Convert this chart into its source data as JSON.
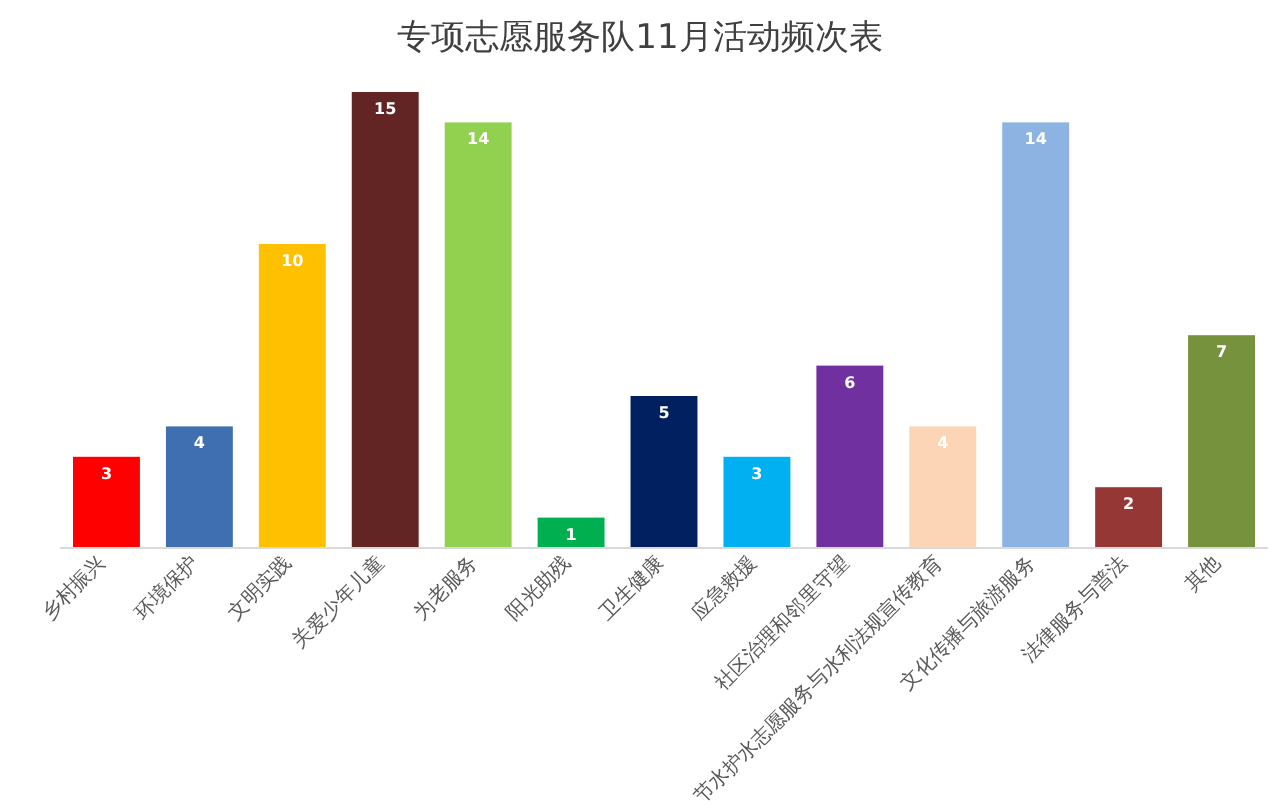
{
  "chart_data": {
    "type": "bar",
    "title": "专项志愿服务队11月活动频次表",
    "categories": [
      "乡村振兴",
      "环境保护",
      "文明实践",
      "关爱少年儿童",
      "为老服务",
      "阳光助残",
      "卫生健康",
      "应急救援",
      "社区治理和邻里守望",
      "节水护水志愿服务与水利法规宣传教育",
      "文化传播与旅游服务",
      "法律服务与普法",
      "其他"
    ],
    "values": [
      3,
      4,
      10,
      15,
      14,
      1,
      5,
      3,
      6,
      4,
      14,
      2,
      7
    ],
    "colors": [
      "#ff0000",
      "#3f6fb0",
      "#ffc000",
      "#632523",
      "#92d050",
      "#00b050",
      "#002060",
      "#00b0f0",
      "#7030a0",
      "#fbd5b5",
      "#8db3e2",
      "#953735",
      "#76923c"
    ],
    "data_labels": true,
    "relative": false
  }
}
